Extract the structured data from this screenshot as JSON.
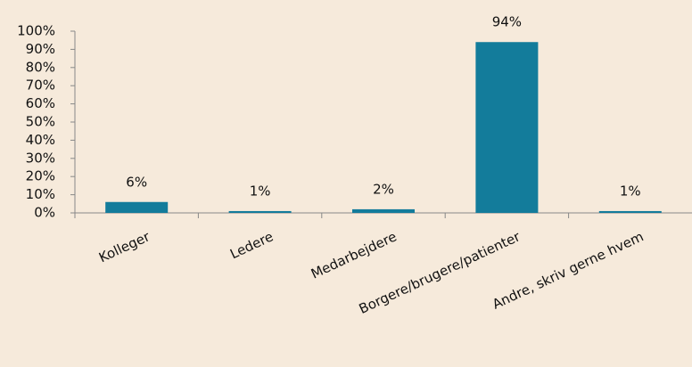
{
  "chart_data": {
    "type": "bar",
    "categories": [
      "Kolleger",
      "Ledere",
      "Medarbejdere",
      "Borgere/brugere/patienter",
      "Andre, skriv gerne hvem"
    ],
    "values": [
      6,
      1,
      2,
      94,
      1
    ],
    "value_labels": [
      "6%",
      "1%",
      "2%",
      "94%",
      "1%"
    ],
    "color": "#137c9b",
    "ylim": [
      0,
      100
    ],
    "yticks": [
      {
        "value": 0,
        "label": "0%"
      },
      {
        "value": 10,
        "label": "10%"
      },
      {
        "value": 20,
        "label": "20%"
      },
      {
        "value": 30,
        "label": "30%"
      },
      {
        "value": 40,
        "label": "40%"
      },
      {
        "value": 50,
        "label": "50%"
      },
      {
        "value": 60,
        "label": "60%"
      },
      {
        "value": 70,
        "label": "70%"
      },
      {
        "value": 80,
        "label": "80%"
      },
      {
        "value": 90,
        "label": "90%"
      },
      {
        "value": 100,
        "label": "100%"
      }
    ],
    "grid": false
  }
}
